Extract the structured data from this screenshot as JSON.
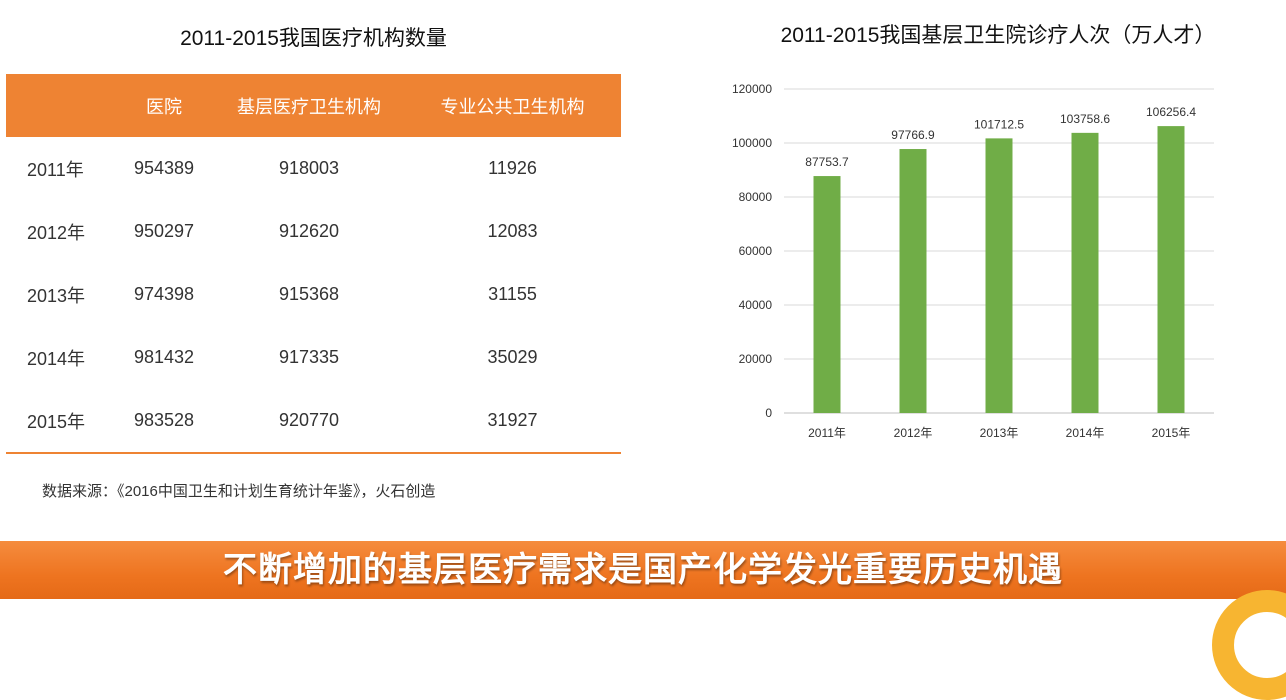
{
  "table": {
    "title": "2011-2015我国医疗机构数量",
    "headers": [
      "",
      "医院",
      "基层医疗卫生机构",
      "专业公共卫生机构"
    ],
    "rows": [
      [
        "2011年",
        "954389",
        "918003",
        "11926"
      ],
      [
        "2012年",
        "950297",
        "912620",
        "12083"
      ],
      [
        "2013年",
        "974398",
        "915368",
        "31155"
      ],
      [
        "2014年",
        "981432",
        "917335",
        "35029"
      ],
      [
        "2015年",
        "983528",
        "920770",
        "31927"
      ]
    ],
    "header_color": "#ee8333"
  },
  "source_note": "数据来源：《2016中国卫生和计划生育统计年鉴》，火石创造",
  "banner": {
    "text": "不断增加的基层医疗需求是国产化学发光重要历史机遇",
    "color": "#ee7420"
  },
  "chart_data": {
    "type": "bar",
    "title": "2011-2015我国基层卫生院诊疗人次（万人才）",
    "categories": [
      "2011年",
      "2012年",
      "2013年",
      "2014年",
      "2015年"
    ],
    "values": [
      87753.7,
      97766.9,
      101712.5,
      103758.6,
      106256.4
    ],
    "value_labels": [
      "87753.7",
      "97766.9",
      "101712.5",
      "103758.6",
      "106256.4"
    ],
    "ylim": [
      0,
      120000
    ],
    "yticks": [
      0,
      20000,
      40000,
      60000,
      80000,
      100000,
      120000
    ],
    "xlabel": "",
    "ylabel": "",
    "grid": true,
    "legend": false,
    "bar_color": "#70ad47"
  }
}
